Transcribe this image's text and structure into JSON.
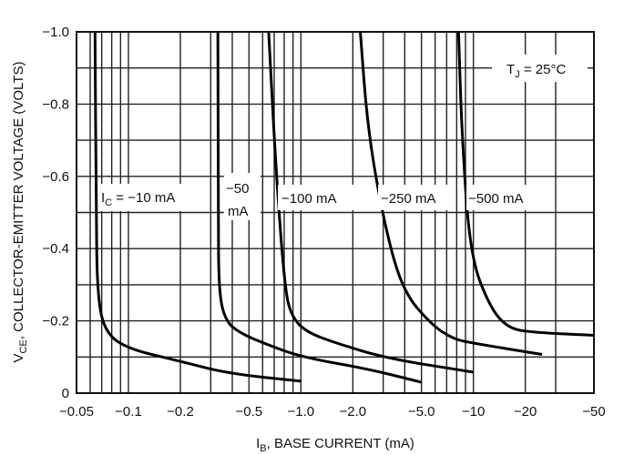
{
  "chart_data": {
    "type": "line",
    "title": "",
    "xlabel": "I",
    "xlabel_sub": "B",
    "xlabel_rest": ", BASE CURRENT (mA)",
    "ylabel": "V",
    "ylabel_sub": "CE",
    "ylabel_rest": ", COLLECTOR-EMITTER VOLTAGE (VOLTS)",
    "x_scale": "log",
    "xlim": [
      0.05,
      50
    ],
    "ylim": [
      0,
      1.0
    ],
    "grid": true,
    "x_ticks": [
      {
        "value": 0.05,
        "label": "−0.05"
      },
      {
        "value": 0.1,
        "label": "−0.1"
      },
      {
        "value": 0.2,
        "label": "−0.2"
      },
      {
        "value": 0.5,
        "label": "−0.5"
      },
      {
        "value": 1.0,
        "label": "−1.0"
      },
      {
        "value": 2.0,
        "label": "−2.0"
      },
      {
        "value": 5.0,
        "label": "−5.0"
      },
      {
        "value": 10,
        "label": "−10"
      },
      {
        "value": 20,
        "label": "−20"
      },
      {
        "value": 50,
        "label": "−50"
      }
    ],
    "y_ticks": [
      {
        "value": 0,
        "label": "0"
      },
      {
        "value": 0.2,
        "label": "−0.2"
      },
      {
        "value": 0.4,
        "label": "−0.4"
      },
      {
        "value": 0.6,
        "label": "−0.6"
      },
      {
        "value": 0.8,
        "label": "−0.8"
      },
      {
        "value": 1.0,
        "label": "−1.0"
      }
    ],
    "annotation": {
      "main": "T",
      "sub": "J",
      "rest": " = 25°C"
    },
    "series": [
      {
        "name": "IC = −10 mA",
        "label_main": "I",
        "label_sub": "C",
        "label_rest": " = −10 mA",
        "x": [
          0.064,
          0.065,
          0.066,
          0.072,
          0.095,
          0.2,
          0.38,
          1.0
        ],
        "y": [
          1.0,
          0.5,
          0.28,
          0.175,
          0.125,
          0.088,
          0.054,
          0.033
        ]
      },
      {
        "name": "−50 mA",
        "label_line1": "−50",
        "label_line2": "mA",
        "x": [
          0.33,
          0.332,
          0.334,
          0.365,
          0.44,
          0.61,
          1.0,
          2.45,
          5.0
        ],
        "y": [
          1.0,
          0.5,
          0.28,
          0.2,
          0.167,
          0.138,
          0.1,
          0.067,
          0.03
        ]
      },
      {
        "name": "−100 mA",
        "label_rest": "−100 mA",
        "x": [
          0.65,
          0.72,
          0.81,
          0.89,
          1.07,
          1.56,
          3.15,
          10
        ],
        "y": [
          1.0,
          0.6,
          0.28,
          0.21,
          0.17,
          0.14,
          0.096,
          0.058
        ]
      },
      {
        "name": "−250 mA",
        "label_rest": "−250 mA",
        "x": [
          2.21,
          2.45,
          3.1,
          3.93,
          5.7,
          7.6,
          10,
          25
        ],
        "y": [
          1.0,
          0.72,
          0.45,
          0.28,
          0.19,
          0.15,
          0.138,
          0.107
        ]
      },
      {
        "name": "−500 mA",
        "label_rest": "−500 mA",
        "x": [
          8.2,
          8.6,
          9.6,
          12.4,
          15.8,
          22,
          50
        ],
        "y": [
          1.0,
          0.7,
          0.38,
          0.24,
          0.18,
          0.168,
          0.16
        ]
      }
    ]
  }
}
